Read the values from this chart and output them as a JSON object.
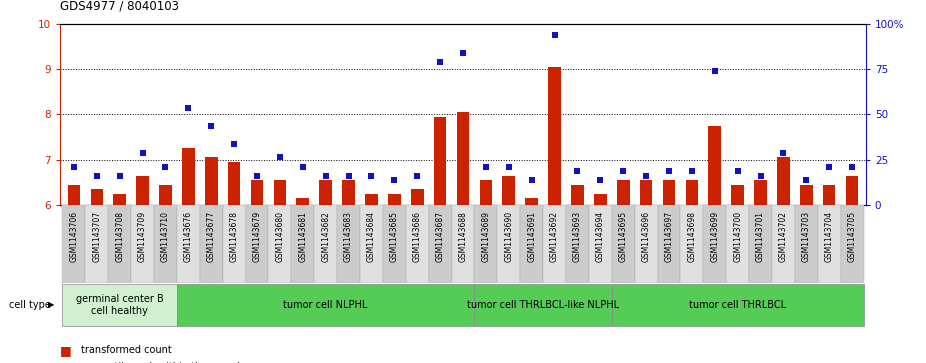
{
  "title": "GDS4977 / 8040103",
  "samples": [
    "GSM1143706",
    "GSM1143707",
    "GSM1143708",
    "GSM1143709",
    "GSM1143710",
    "GSM1143676",
    "GSM1143677",
    "GSM1143678",
    "GSM1143679",
    "GSM1143680",
    "GSM1143681",
    "GSM1143682",
    "GSM1143683",
    "GSM1143684",
    "GSM1143685",
    "GSM1143686",
    "GSM1143687",
    "GSM1143688",
    "GSM1143689",
    "GSM1143690",
    "GSM1143691",
    "GSM1143692",
    "GSM1143693",
    "GSM1143694",
    "GSM1143695",
    "GSM1143696",
    "GSM1143697",
    "GSM1143698",
    "GSM1143699",
    "GSM1143700",
    "GSM1143701",
    "GSM1143702",
    "GSM1143703",
    "GSM1143704",
    "GSM1143705"
  ],
  "bar_values": [
    6.45,
    6.35,
    6.25,
    6.65,
    6.45,
    7.25,
    7.05,
    6.95,
    6.55,
    6.55,
    6.15,
    6.55,
    6.55,
    6.25,
    6.25,
    6.35,
    7.95,
    8.05,
    6.55,
    6.65,
    6.15,
    9.05,
    6.45,
    6.25,
    6.55,
    6.55,
    6.55,
    6.55,
    7.75,
    6.45,
    6.55,
    7.05,
    6.45,
    6.45,
    6.65
  ],
  "dot_values": [
    6.85,
    6.65,
    6.65,
    7.15,
    6.85,
    8.15,
    7.75,
    7.35,
    6.65,
    7.05,
    6.85,
    6.65,
    6.65,
    6.65,
    6.55,
    6.65,
    9.15,
    9.35,
    6.85,
    6.85,
    6.55,
    9.75,
    6.75,
    6.55,
    6.75,
    6.65,
    6.75,
    6.75,
    8.95,
    6.75,
    6.65,
    7.15,
    6.55,
    6.85,
    6.85
  ],
  "cell_groups": [
    {
      "label": "germinal center B\ncell healthy",
      "start": 0,
      "end": 5,
      "color": "#d0f0d0"
    },
    {
      "label": "tumor cell NLPHL",
      "start": 5,
      "end": 18,
      "color": "#55cc55"
    },
    {
      "label": "tumor cell THRLBCL-like NLPHL",
      "start": 18,
      "end": 24,
      "color": "#55cc55"
    },
    {
      "label": "tumor cell THRLBCL",
      "start": 24,
      "end": 35,
      "color": "#55cc55"
    }
  ],
  "ylim": [
    6.0,
    10.0
  ],
  "yticks_left": [
    6,
    7,
    8,
    9,
    10
  ],
  "ytick_right_labels": [
    "0",
    "25",
    "50",
    "75",
    "100%"
  ],
  "bar_color": "#cc2200",
  "dot_color": "#1111cc",
  "left_tick_color": "#cc2200",
  "right_tick_color": "#1111cc",
  "tick_label_bg": "#d8d8d8",
  "title_fontsize": 8.5,
  "tick_fontsize": 5.5,
  "group_label_fontsize": 7,
  "legend_fontsize": 7,
  "celllabel_fontsize": 7
}
